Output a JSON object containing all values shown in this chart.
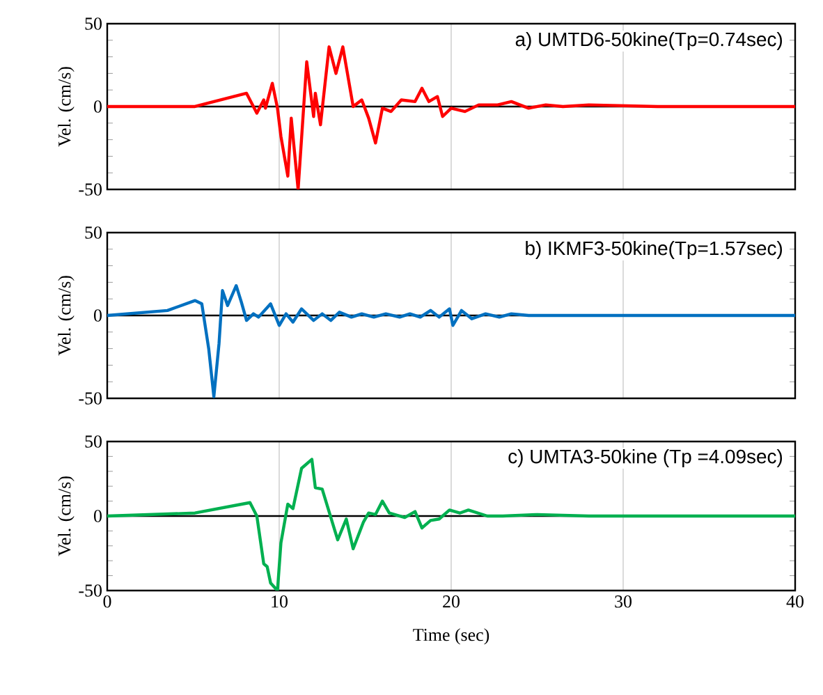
{
  "chart_data": [
    {
      "type": "line",
      "title": "a) UMTD6-50kine(Tp=0.74sec)",
      "ylabel": "Vel. (cm/s)",
      "xlim": [
        0,
        40
      ],
      "ylim": [
        -50,
        50
      ],
      "xticks": [
        0,
        10,
        20,
        30,
        40
      ],
      "yticks": [
        -50,
        {
          "value": -40,
          "label": null
        },
        {
          "value": -30,
          "label": null
        },
        {
          "value": -20,
          "label": null
        },
        {
          "value": -10,
          "label": null
        },
        0,
        {
          "value": 10,
          "label": null
        },
        {
          "value": 20,
          "label": null
        },
        {
          "value": 30,
          "label": null
        },
        {
          "value": 40,
          "label": null
        },
        50
      ],
      "grid": "x",
      "tick_labels": "y",
      "marker": "none",
      "line_style": "solid",
      "ref_lines": [
        {
          "axis": "y",
          "value": 0,
          "color": "#000000"
        }
      ],
      "series": [
        {
          "color": "#ff0000",
          "x": [
            0,
            4.8,
            5.1,
            8.1,
            8.7,
            9.1,
            9.2,
            9.6,
            9.9,
            10.1,
            10.5,
            10.7,
            11.1,
            11.6,
            12,
            12.1,
            12.4,
            12.9,
            13.3,
            13.7,
            14.3,
            14.8,
            15.2,
            15.6,
            16,
            16.5,
            17.1,
            17.9,
            18.3,
            18.7,
            19.2,
            19.5,
            20,
            20.8,
            21.6,
            22.7,
            23.5,
            24.5,
            25.5,
            26.5,
            28,
            32,
            36,
            40
          ],
          "values": [
            0,
            0,
            0,
            8,
            -4,
            4,
            -1,
            14,
            -1,
            -18,
            -42,
            -7,
            -50,
            27,
            -6,
            8,
            -11,
            36,
            20,
            36,
            0,
            4,
            -7,
            -22,
            -1,
            -3,
            4,
            3,
            11,
            3,
            6,
            -6,
            -1,
            -3,
            1,
            1,
            3,
            -1,
            1,
            0,
            1,
            0,
            0,
            0
          ]
        }
      ]
    },
    {
      "type": "line",
      "title": "b) IKMF3-50kine(Tp=1.57sec)",
      "ylabel": "Vel. (cm/s)",
      "xlim": [
        0,
        40
      ],
      "ylim": [
        -50,
        50
      ],
      "xticks": [
        0,
        10,
        20,
        30,
        40
      ],
      "yticks": [
        -50,
        {
          "value": -40,
          "label": null
        },
        {
          "value": -30,
          "label": null
        },
        {
          "value": -20,
          "label": null
        },
        {
          "value": -10,
          "label": null
        },
        0,
        {
          "value": 10,
          "label": null
        },
        {
          "value": 20,
          "label": null
        },
        {
          "value": 30,
          "label": null
        },
        {
          "value": 40,
          "label": null
        },
        50
      ],
      "grid": "x",
      "tick_labels": "y",
      "marker": "none",
      "line_style": "solid",
      "ref_lines": [
        {
          "axis": "y",
          "value": 0,
          "color": "#000000"
        }
      ],
      "series": [
        {
          "color": "#0070c0",
          "x": [
            0,
            3.5,
            5.1,
            5.5,
            5.9,
            6.2,
            6.5,
            6.7,
            7,
            7.5,
            7.8,
            8.1,
            8.5,
            8.8,
            9.5,
            10,
            10.4,
            10.8,
            11.3,
            12,
            12.5,
            13,
            13.5,
            14.2,
            14.8,
            15.5,
            16.2,
            17,
            17.6,
            18.2,
            18.8,
            19.3,
            19.9,
            20.1,
            20.6,
            21.2,
            22,
            22.8,
            23.5,
            24.5,
            26,
            30,
            35,
            40
          ],
          "values": [
            0,
            3,
            9,
            7,
            -20,
            -49,
            -17,
            15,
            6,
            18,
            8,
            -3,
            1,
            -1,
            7,
            -6,
            1,
            -4,
            4,
            -3,
            1,
            -3,
            2,
            -1,
            1,
            -1,
            1,
            -1,
            1,
            -1,
            3,
            -1,
            4,
            -6,
            3,
            -2,
            1,
            -1,
            1,
            0,
            0,
            0,
            0,
            0
          ]
        }
      ]
    },
    {
      "type": "line",
      "title": "c) UMTA3-50kine (Tp =4.09sec)",
      "xlabel": "Time (sec)",
      "ylabel": "Vel. (cm/s)",
      "xlim": [
        0,
        40
      ],
      "ylim": [
        -50,
        50
      ],
      "xticks": [
        0,
        10,
        20,
        30,
        40
      ],
      "yticks": [
        -50,
        {
          "value": -40,
          "label": null
        },
        {
          "value": -30,
          "label": null
        },
        {
          "value": -20,
          "label": null
        },
        {
          "value": -10,
          "label": null
        },
        0,
        {
          "value": 10,
          "label": null
        },
        {
          "value": 20,
          "label": null
        },
        {
          "value": 30,
          "label": null
        },
        {
          "value": 40,
          "label": null
        },
        50
      ],
      "grid": "x",
      "marker": "none",
      "line_style": "solid",
      "ref_lines": [
        {
          "axis": "y",
          "value": 0,
          "color": "#000000"
        }
      ],
      "series": [
        {
          "color": "#00b050",
          "x": [
            0,
            5.1,
            8.3,
            8.7,
            9.1,
            9.3,
            9.5,
            9.9,
            10.1,
            10.5,
            10.8,
            11.3,
            11.9,
            12.1,
            12.5,
            13.4,
            13.9,
            14.3,
            14.9,
            15.2,
            15.6,
            16,
            16.4,
            17.3,
            17.9,
            18.3,
            18.8,
            19.3,
            19.9,
            20.5,
            21,
            22.1,
            23,
            25,
            28,
            32,
            36,
            40
          ],
          "values": [
            0,
            2,
            9,
            0,
            -32,
            -34,
            -45,
            -50,
            -18,
            8,
            5,
            32,
            38,
            19,
            18,
            -16,
            -2,
            -22,
            -4,
            2,
            1,
            10,
            2,
            -1,
            3,
            -8,
            -3,
            -2,
            4,
            2,
            4,
            0,
            0,
            1,
            0,
            0,
            0,
            0
          ]
        }
      ]
    }
  ]
}
